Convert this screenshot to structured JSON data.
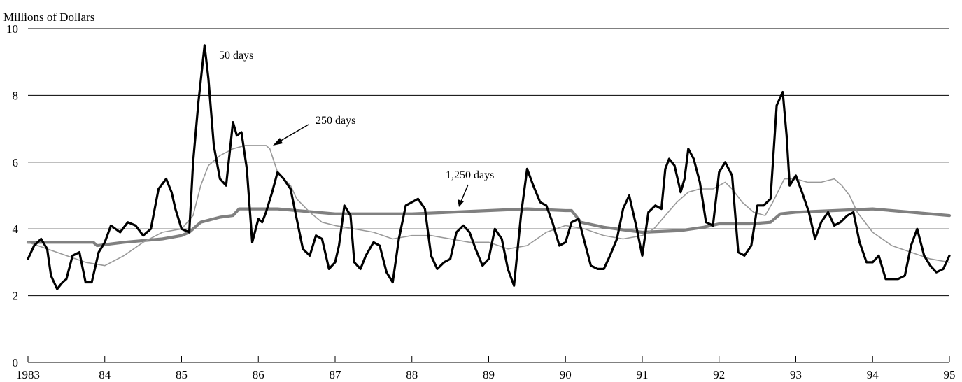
{
  "chart_data": {
    "type": "line",
    "ylabel": "Millions of Dollars",
    "ylim": [
      0,
      10
    ],
    "yticks": [
      "0",
      "2",
      "4",
      "6",
      "8",
      "10"
    ],
    "xlim": [
      1983,
      1995
    ],
    "xticks": [
      "1983",
      "84",
      "85",
      "86",
      "87",
      "88",
      "89",
      "90",
      "91",
      "92",
      "93",
      "94",
      "95"
    ],
    "grid": true,
    "series": [
      {
        "name": "50 days",
        "color": "#000000",
        "x": [
          1983.0,
          1983.08,
          1983.17,
          1983.25,
          1983.3,
          1983.38,
          1983.45,
          1983.5,
          1983.58,
          1983.67,
          1983.75,
          1983.83,
          1983.92,
          1984.0,
          1984.08,
          1984.2,
          1984.3,
          1984.4,
          1984.5,
          1984.6,
          1984.7,
          1984.8,
          1984.87,
          1984.92,
          1985.0,
          1985.1,
          1985.15,
          1985.22,
          1985.3,
          1985.35,
          1985.42,
          1985.5,
          1985.58,
          1985.67,
          1985.72,
          1985.78,
          1985.85,
          1985.92,
          1986.0,
          1986.05,
          1986.1,
          1986.18,
          1986.25,
          1986.33,
          1986.42,
          1986.5,
          1986.58,
          1986.67,
          1986.75,
          1986.83,
          1986.92,
          1987.0,
          1987.05,
          1987.12,
          1987.2,
          1987.25,
          1987.33,
          1987.4,
          1987.5,
          1987.58,
          1987.67,
          1987.75,
          1987.83,
          1987.92,
          1988.0,
          1988.08,
          1988.17,
          1988.25,
          1988.33,
          1988.42,
          1988.5,
          1988.58,
          1988.67,
          1988.75,
          1988.83,
          1988.92,
          1989.0,
          1989.08,
          1989.17,
          1989.25,
          1989.33,
          1989.42,
          1989.5,
          1989.58,
          1989.67,
          1989.75,
          1989.83,
          1989.92,
          1990.0,
          1990.08,
          1990.17,
          1990.25,
          1990.33,
          1990.42,
          1990.5,
          1990.58,
          1990.67,
          1990.75,
          1990.83,
          1990.92,
          1991.0,
          1991.08,
          1991.17,
          1991.25,
          1991.3,
          1991.35,
          1991.42,
          1991.5,
          1991.55,
          1991.6,
          1991.67,
          1991.75,
          1991.83,
          1991.92,
          1992.0,
          1992.08,
          1992.17,
          1992.25,
          1992.33,
          1992.42,
          1992.5,
          1992.58,
          1992.67,
          1992.75,
          1992.83,
          1992.88,
          1992.92,
          1993.0,
          1993.08,
          1993.17,
          1993.25,
          1993.33,
          1993.42,
          1993.5,
          1993.58,
          1993.67,
          1993.75,
          1993.83,
          1993.92,
          1994.0,
          1994.08,
          1994.17,
          1994.25,
          1994.33,
          1994.42,
          1994.5,
          1994.58,
          1994.67,
          1994.75,
          1994.83,
          1994.92,
          1995.0
        ],
        "y": [
          3.1,
          3.5,
          3.7,
          3.4,
          2.6,
          2.2,
          2.4,
          2.5,
          3.2,
          3.3,
          2.4,
          2.4,
          3.3,
          3.6,
          4.1,
          3.9,
          4.2,
          4.1,
          3.8,
          4.0,
          5.2,
          5.5,
          5.1,
          4.6,
          4.0,
          3.9,
          6.0,
          7.8,
          9.5,
          8.5,
          6.5,
          5.5,
          5.3,
          7.2,
          6.8,
          6.9,
          5.8,
          3.6,
          4.3,
          4.2,
          4.5,
          5.1,
          5.7,
          5.5,
          5.2,
          4.3,
          3.4,
          3.2,
          3.8,
          3.7,
          2.8,
          3.0,
          3.5,
          4.7,
          4.4,
          3.0,
          2.8,
          3.2,
          3.6,
          3.5,
          2.7,
          2.4,
          3.7,
          4.7,
          4.8,
          4.9,
          4.6,
          3.2,
          2.8,
          3.0,
          3.1,
          3.9,
          4.1,
          3.9,
          3.4,
          2.9,
          3.1,
          4.0,
          3.7,
          2.8,
          2.3,
          4.4,
          5.8,
          5.3,
          4.8,
          4.7,
          4.2,
          3.5,
          3.6,
          4.2,
          4.3,
          3.6,
          2.9,
          2.8,
          2.8,
          3.2,
          3.7,
          4.6,
          5.0,
          4.1,
          3.2,
          4.5,
          4.7,
          4.6,
          5.8,
          6.1,
          5.9,
          5.1,
          5.5,
          6.4,
          6.1,
          5.4,
          4.2,
          4.1,
          5.7,
          6.0,
          5.6,
          3.3,
          3.2,
          3.5,
          4.7,
          4.7,
          4.9,
          7.7,
          8.1,
          6.8,
          5.3,
          5.6,
          5.1,
          4.5,
          3.7,
          4.2,
          4.5,
          4.1,
          4.2,
          4.4,
          4.5,
          3.6,
          3.0,
          3.0,
          3.2,
          2.5,
          2.5,
          2.5,
          2.6,
          3.5,
          4.0,
          3.2,
          2.9,
          2.7,
          2.8,
          3.2
        ]
      },
      {
        "name": "250 days",
        "color": "#999999",
        "x": [
          1983.0,
          1983.25,
          1983.5,
          1983.75,
          1984.0,
          1984.25,
          1984.5,
          1984.75,
          1985.0,
          1985.15,
          1985.25,
          1985.35,
          1985.5,
          1985.67,
          1985.83,
          1986.0,
          1986.1,
          1986.15,
          1986.25,
          1986.42,
          1986.5,
          1986.67,
          1986.83,
          1987.0,
          1987.25,
          1987.5,
          1987.75,
          1988.0,
          1988.25,
          1988.5,
          1988.75,
          1989.0,
          1989.25,
          1989.5,
          1989.75,
          1990.0,
          1990.25,
          1990.5,
          1990.75,
          1991.0,
          1991.15,
          1991.3,
          1991.45,
          1991.6,
          1991.75,
          1991.92,
          1992.08,
          1992.17,
          1992.3,
          1992.45,
          1992.6,
          1992.7,
          1992.85,
          1993.0,
          1993.15,
          1993.33,
          1993.5,
          1993.6,
          1993.7,
          1993.8,
          1994.0,
          1994.25,
          1994.5,
          1994.75,
          1995.0
        ],
        "y": [
          3.6,
          3.4,
          3.2,
          3.0,
          2.9,
          3.2,
          3.6,
          3.9,
          4.0,
          4.4,
          5.3,
          5.9,
          6.2,
          6.4,
          6.5,
          6.5,
          6.5,
          6.4,
          5.7,
          5.3,
          4.9,
          4.5,
          4.2,
          4.1,
          4.0,
          3.9,
          3.7,
          3.8,
          3.8,
          3.7,
          3.6,
          3.6,
          3.4,
          3.5,
          3.9,
          4.1,
          4.0,
          3.8,
          3.7,
          3.8,
          4.0,
          4.4,
          4.8,
          5.1,
          5.2,
          5.2,
          5.4,
          5.2,
          4.8,
          4.5,
          4.4,
          4.8,
          5.5,
          5.5,
          5.4,
          5.4,
          5.5,
          5.3,
          5.0,
          4.5,
          3.9,
          3.5,
          3.3,
          3.1,
          3.0
        ]
      },
      {
        "name": "1,250 days",
        "color": "#808080",
        "x": [
          1983.0,
          1983.5,
          1983.85,
          1983.9,
          1984.25,
          1984.75,
          1985.0,
          1985.1,
          1985.25,
          1985.5,
          1985.67,
          1985.75,
          1986.0,
          1986.25,
          1986.5,
          1986.75,
          1987.0,
          1987.5,
          1988.0,
          1988.5,
          1989.0,
          1989.5,
          1990.0,
          1990.08,
          1990.2,
          1990.5,
          1991.0,
          1991.5,
          1991.8,
          1992.0,
          1992.4,
          1992.67,
          1992.8,
          1993.0,
          1993.5,
          1994.0,
          1994.5,
          1995.0
        ],
        "y": [
          3.6,
          3.6,
          3.6,
          3.5,
          3.6,
          3.7,
          3.8,
          3.9,
          4.2,
          4.35,
          4.4,
          4.6,
          4.6,
          4.6,
          4.55,
          4.5,
          4.45,
          4.45,
          4.45,
          4.5,
          4.55,
          4.6,
          4.55,
          4.55,
          4.2,
          4.05,
          3.9,
          3.95,
          4.05,
          4.15,
          4.15,
          4.2,
          4.45,
          4.5,
          4.55,
          4.6,
          4.5,
          4.4
        ]
      }
    ],
    "annotations": [
      {
        "text": "50 days",
        "series": "50 days"
      },
      {
        "text": "250 days",
        "series": "250 days"
      },
      {
        "text": "1,250 days",
        "series": "1,250 days"
      }
    ]
  }
}
